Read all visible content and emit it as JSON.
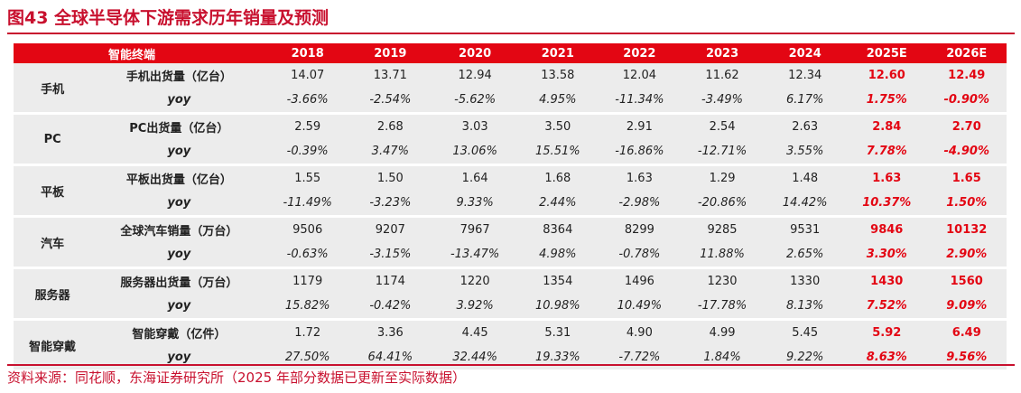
{
  "title": "图43  全球半导体下游需求历年销量及预测",
  "header": {
    "label": "智能终端",
    "years": [
      "2018",
      "2019",
      "2020",
      "2021",
      "2022",
      "2023",
      "2024",
      "2025E",
      "2026E"
    ]
  },
  "groups": [
    {
      "category": "手机",
      "metric": "手机出货量（亿台）",
      "values": [
        "14.07",
        "13.71",
        "12.94",
        "13.58",
        "12.04",
        "11.62",
        "12.34",
        "12.60",
        "12.49"
      ],
      "yoy_label": "yoy",
      "yoy": [
        "-3.66%",
        "-2.54%",
        "-5.62%",
        "4.95%",
        "-11.34%",
        "-3.49%",
        "6.17%",
        "1.75%",
        "-0.90%"
      ]
    },
    {
      "category": "PC",
      "metric": "PC出货量（亿台）",
      "values": [
        "2.59",
        "2.68",
        "3.03",
        "3.50",
        "2.91",
        "2.54",
        "2.63",
        "2.84",
        "2.70"
      ],
      "yoy_label": "yoy",
      "yoy": [
        "-0.39%",
        "3.47%",
        "13.06%",
        "15.51%",
        "-16.86%",
        "-12.71%",
        "3.55%",
        "7.78%",
        "-4.90%"
      ]
    },
    {
      "category": "平板",
      "metric": "平板出货量（亿台）",
      "values": [
        "1.55",
        "1.50",
        "1.64",
        "1.68",
        "1.63",
        "1.29",
        "1.48",
        "1.63",
        "1.65"
      ],
      "yoy_label": "yoy",
      "yoy": [
        "-11.49%",
        "-3.23%",
        "9.33%",
        "2.44%",
        "-2.98%",
        "-20.86%",
        "14.42%",
        "10.37%",
        "1.50%"
      ]
    },
    {
      "category": "汽车",
      "metric": "全球汽车销量（万台）",
      "values": [
        "9506",
        "9207",
        "7967",
        "8364",
        "8299",
        "9285",
        "9531",
        "9846",
        "10132"
      ],
      "yoy_label": "yoy",
      "yoy": [
        "-0.63%",
        "-3.15%",
        "-13.47%",
        "4.98%",
        "-0.78%",
        "11.88%",
        "2.65%",
        "3.30%",
        "2.90%"
      ]
    },
    {
      "category": "服务器",
      "metric": "服务器出货量（万台）",
      "values": [
        "1179",
        "1174",
        "1220",
        "1354",
        "1496",
        "1230",
        "1330",
        "1430",
        "1560"
      ],
      "yoy_label": "yoy",
      "yoy": [
        "15.82%",
        "-0.42%",
        "3.92%",
        "10.98%",
        "10.49%",
        "-17.78%",
        "8.13%",
        "7.52%",
        "9.09%"
      ]
    },
    {
      "category": "智能穿戴",
      "metric": "智能穿戴（亿件）",
      "values": [
        "1.72",
        "3.36",
        "4.45",
        "5.31",
        "4.90",
        "4.99",
        "5.45",
        "5.92",
        "6.49"
      ],
      "yoy_label": "yoy",
      "yoy": [
        "27.50%",
        "64.41%",
        "32.44%",
        "19.33%",
        "-7.72%",
        "1.84%",
        "9.22%",
        "8.63%",
        "9.56%"
      ]
    }
  ],
  "source": "资料来源：同花顺，东海证券研究所（2025 年部分数据已更新至实际数据）",
  "colors": {
    "accent": "#e30613",
    "title": "#c8102e",
    "shade": "#ececec"
  }
}
